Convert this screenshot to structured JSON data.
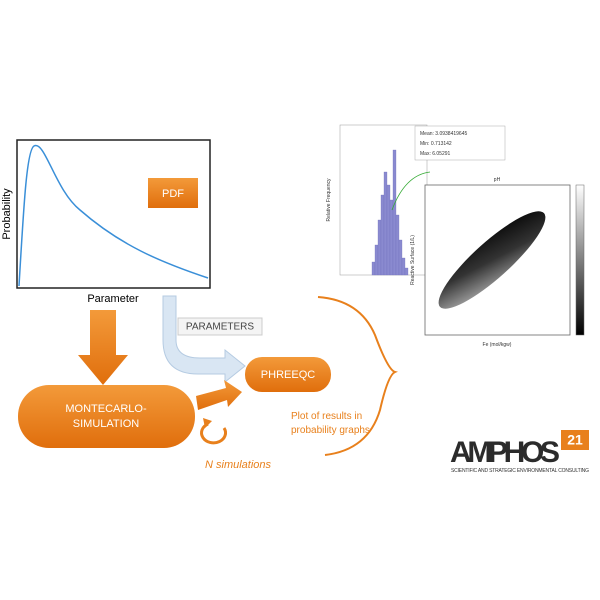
{
  "pdf_chart": {
    "y_label": "Probability",
    "x_label": "Parameter",
    "badge": "PDF"
  },
  "flow": {
    "parameters": "PARAMETERS",
    "phreeqc": "PHREEQC",
    "montecarlo": [
      "MONTECARLO-",
      "SIMULATION"
    ],
    "n_simulations": "N simulations",
    "plot_results": [
      "Plot of results in",
      "probability graphs"
    ]
  },
  "histogram": {
    "stats": [
      "Mean: 3.0938419645",
      "Min: 0.713142",
      "Max: 6.05291"
    ],
    "y_label": "Relative Frequency"
  },
  "scatter": {
    "title": "pH",
    "y_label": "Reactive Surface (1/L)",
    "x_label": "Fe (mol/kgw)"
  },
  "logo": {
    "name": "AMPHOS",
    "superscript": "21",
    "tagline": "SCIENTIFIC AND STRATEGIC ENVIRONMENTAL CONSULTING"
  }
}
